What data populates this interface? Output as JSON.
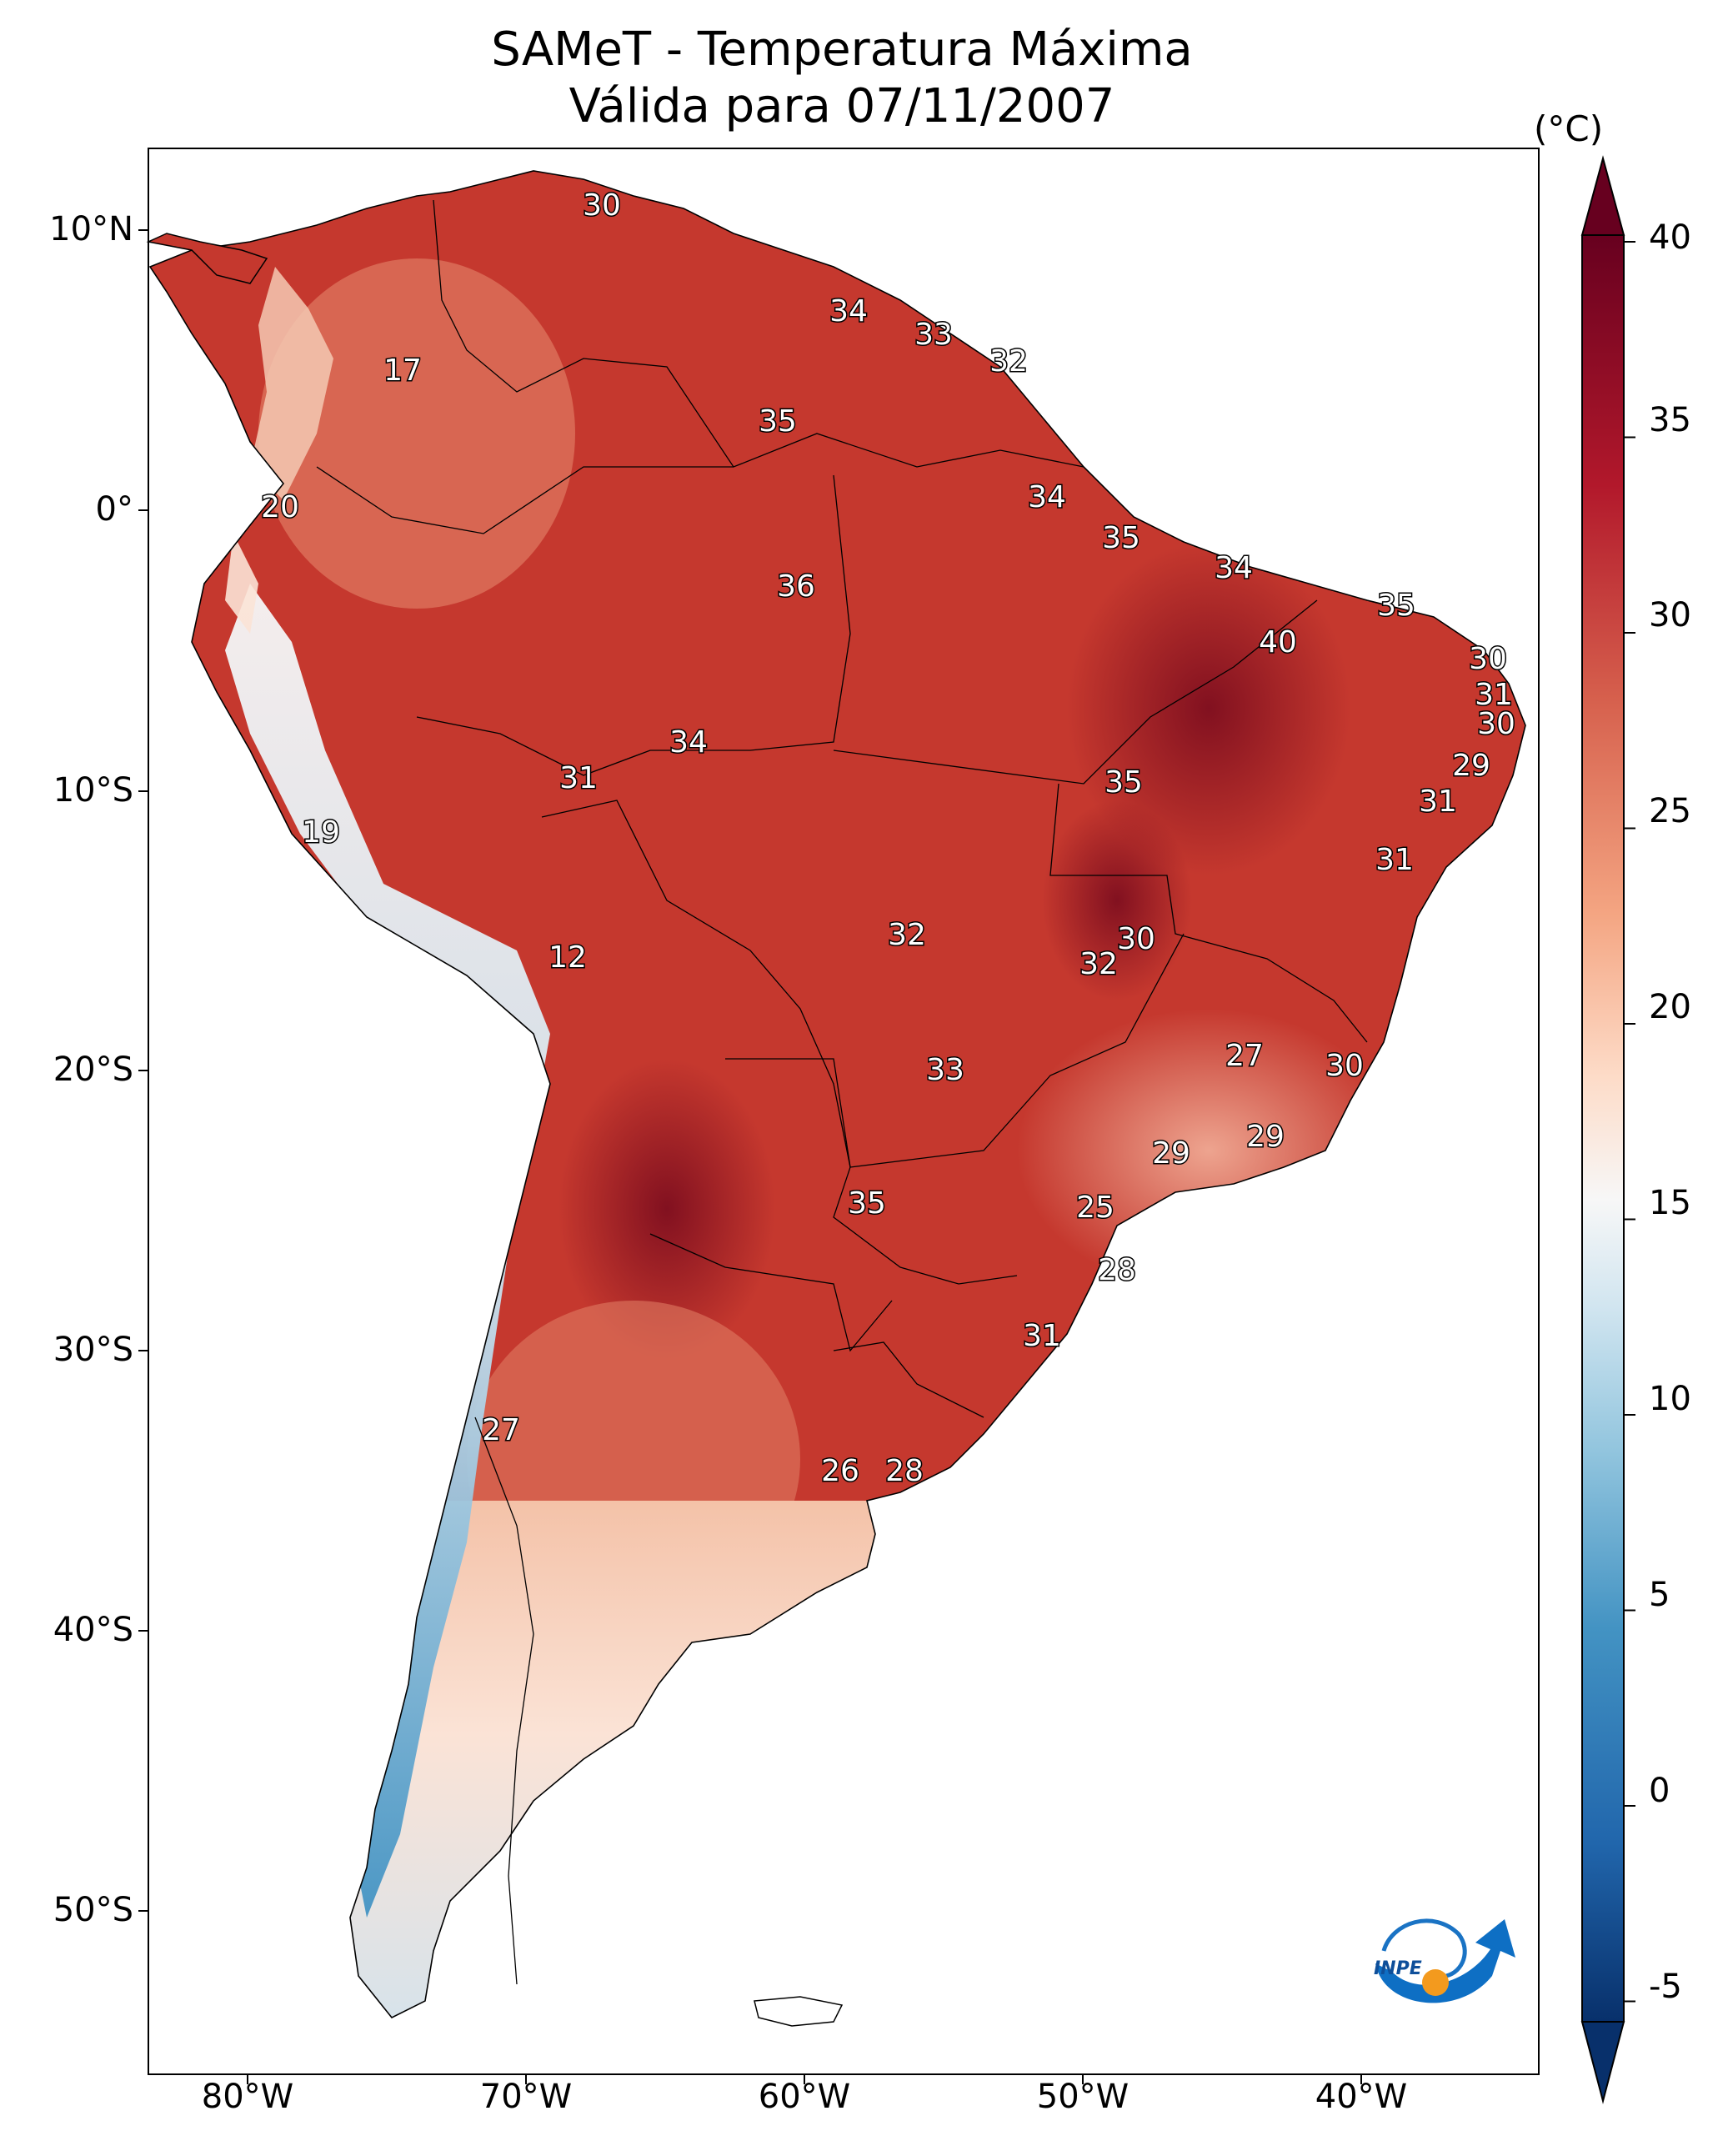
{
  "title": "SAMeT - Temperatura Máxima",
  "subtitle": "Válida para 07/11/2007",
  "colorbar": {
    "unit": "(°C)",
    "ticks": [
      "40",
      "35",
      "30",
      "25",
      "20",
      "15",
      "10",
      "5",
      "0",
      "-5"
    ],
    "range": [
      -5,
      40
    ],
    "extend": "both",
    "colors": [
      "#08306b",
      "#2166ac",
      "#4393c3",
      "#92c5de",
      "#d1e5f0",
      "#f7f7f7",
      "#fddbc7",
      "#f4a582",
      "#d6604d",
      "#b2182b",
      "#67001f"
    ]
  },
  "axes": {
    "lat_labels": [
      "10°N",
      "0°",
      "10°S",
      "20°S",
      "30°S",
      "40°S",
      "50°S"
    ],
    "lon_labels": [
      "80°W",
      "70°W",
      "60°W",
      "50°W",
      "40°W"
    ]
  },
  "logo": {
    "text": "INPE"
  },
  "station_labels": [
    "30",
    "34",
    "33",
    "32",
    "17",
    "35",
    "20",
    "34",
    "36",
    "35",
    "34",
    "35",
    "40",
    "30",
    "31",
    "30",
    "34",
    "31",
    "29",
    "35",
    "19",
    "31",
    "31",
    "12",
    "30",
    "32",
    "32",
    "27",
    "30",
    "33",
    "29",
    "29",
    "35",
    "25",
    "28",
    "31",
    "27",
    "26",
    "28"
  ]
}
